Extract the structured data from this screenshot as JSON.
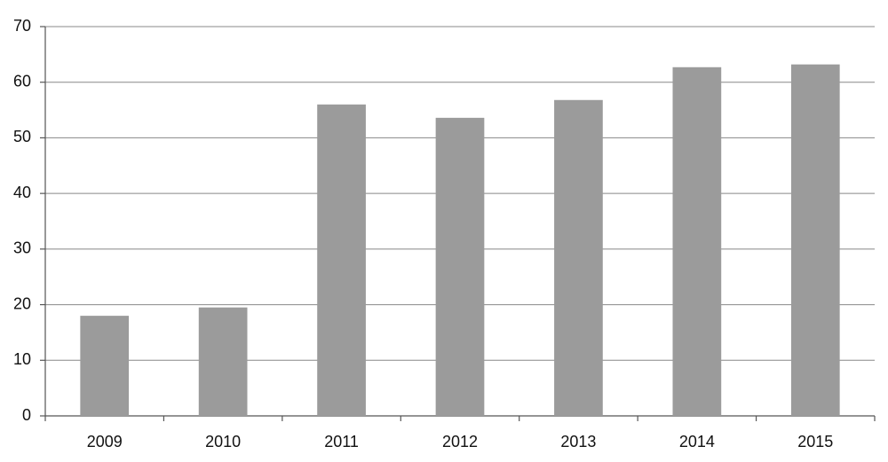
{
  "chart_data": {
    "type": "bar",
    "categories": [
      "2009",
      "2010",
      "2011",
      "2012",
      "2013",
      "2014",
      "2015"
    ],
    "values": [
      18.0,
      19.5,
      56.0,
      53.6,
      56.8,
      62.7,
      63.2
    ],
    "color": "#9b9b9b",
    "ylim": [
      0,
      70
    ],
    "yticks": [
      0,
      10,
      20,
      30,
      40,
      50,
      60,
      70
    ],
    "grid": true
  }
}
